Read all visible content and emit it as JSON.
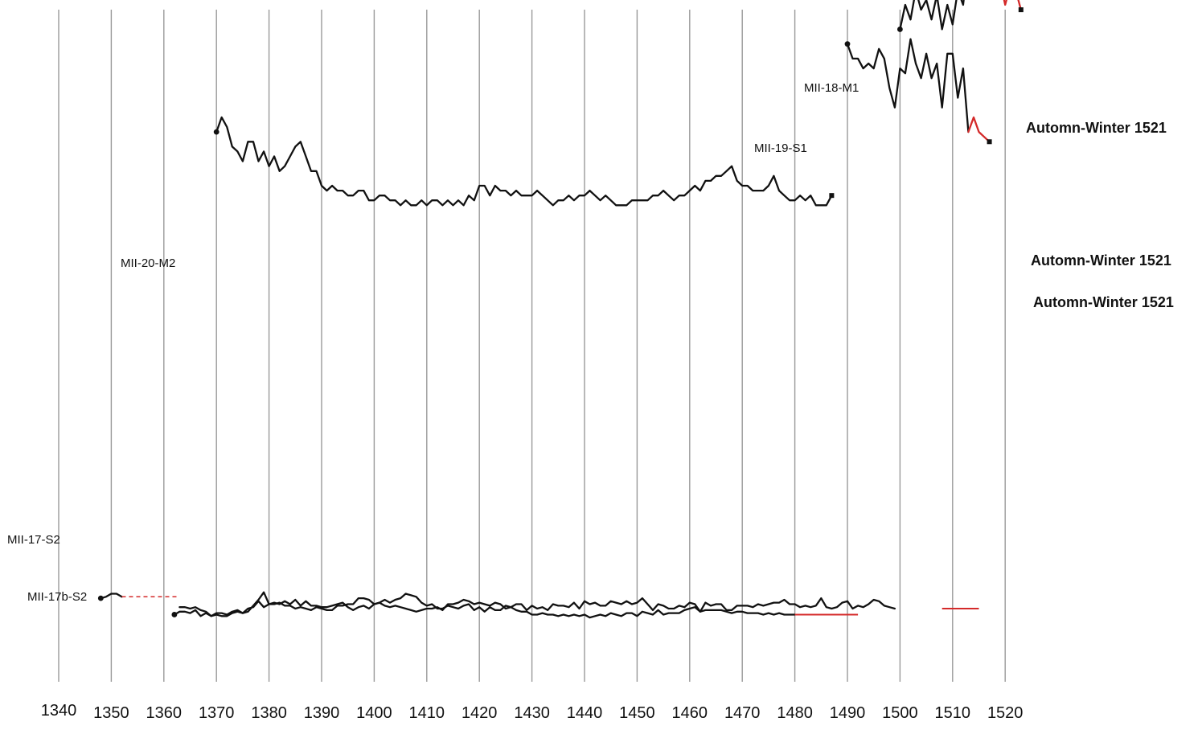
{
  "chart_data": {
    "type": "line",
    "title": "",
    "xlabel": "",
    "ylabel": "",
    "xlim": [
      1340,
      1520
    ],
    "ylim": [
      0,
      100
    ],
    "grid": "vertical lines at each decade",
    "legend": "none",
    "x_ticks": [
      1340,
      1350,
      1360,
      1370,
      1380,
      1390,
      1400,
      1410,
      1420,
      1430,
      1440,
      1450,
      1460,
      1470,
      1480,
      1490,
      1500,
      1510,
      1520
    ],
    "x_tick_labels": [
      "1340",
      "1350",
      "1360",
      "1370",
      "1380",
      "1390",
      "1400",
      "1410",
      "1420",
      "1430",
      "1440",
      "1450",
      "1460",
      "1470",
      "1480",
      "1490",
      "1500",
      "1510",
      "1520"
    ],
    "colors": {
      "series": "#111111",
      "highlight": "#d42a2a",
      "grid": "#9a9a9a"
    },
    "series": [
      {
        "name": "MII-18-M1",
        "start_year": 1500,
        "values": [
          82,
          87,
          84,
          90,
          86,
          88,
          84,
          89,
          82,
          87,
          83,
          90,
          87,
          96,
          93,
          95,
          91,
          98,
          94,
          92,
          87,
          91,
          90,
          86
        ],
        "highlight_from": 1515,
        "end_year": 1521
      },
      {
        "name": "MII-19-S1",
        "start_year": 1490,
        "values": [
          79,
          76,
          76,
          74,
          75,
          74,
          78,
          76,
          70,
          66,
          74,
          73,
          80,
          75,
          72,
          77,
          72,
          75,
          66,
          77,
          77,
          68,
          74,
          61,
          64,
          61,
          60,
          59
        ],
        "highlight_from": 1513,
        "end_year": 1521
      },
      {
        "name": "MII-20-M2",
        "start_year": 1370,
        "values": [
          61,
          64,
          62,
          58,
          57,
          55,
          59,
          59,
          55,
          57,
          54,
          56,
          53,
          54,
          56,
          58,
          59,
          56,
          53,
          53,
          50,
          49,
          50,
          49,
          49,
          48,
          48,
          49,
          49,
          47,
          47,
          48,
          48,
          47,
          47,
          46,
          47,
          46,
          46,
          47,
          46,
          47,
          47,
          46,
          47,
          46,
          47,
          46,
          48,
          47,
          50,
          50,
          48,
          50,
          49,
          49,
          48,
          49,
          48,
          48,
          48,
          49,
          48,
          47,
          46,
          47,
          47,
          48,
          47,
          48,
          48,
          49,
          48,
          47,
          48,
          47,
          46,
          46,
          46,
          47,
          47,
          47,
          47,
          48,
          48,
          49,
          48,
          47,
          48,
          48,
          49,
          50,
          49,
          51,
          51,
          52,
          52,
          53,
          54,
          51,
          50,
          50,
          49,
          49,
          49,
          50,
          52,
          49,
          48,
          47,
          47,
          48,
          47,
          48,
          46,
          46,
          46,
          48
        ],
        "highlight_from": 1511,
        "end_year": 1521
      },
      {
        "name": "MII-17-S2",
        "start_year": 1348,
        "values": [
          14,
          15,
          17,
          17,
          15,
          3,
          9,
          8,
          6,
          5,
          8,
          7,
          5,
          5,
          6,
          8,
          8,
          7,
          8,
          6,
          5,
          2,
          4,
          4,
          3,
          5,
          6,
          4,
          7,
          8,
          12,
          8,
          10,
          10,
          11,
          9,
          9,
          7,
          8,
          7,
          6,
          8,
          7,
          6,
          6,
          9,
          9,
          10,
          10,
          14,
          14,
          13,
          10,
          11,
          9,
          8,
          9,
          8,
          7,
          6,
          5,
          6,
          7,
          7,
          8,
          6,
          10,
          10,
          11,
          13,
          12,
          10,
          11,
          10,
          9,
          11,
          10,
          7,
          8,
          6,
          5,
          5,
          3,
          3,
          4,
          3,
          3,
          2,
          3,
          2,
          3,
          2,
          3,
          1,
          2,
          3,
          2,
          4,
          3,
          2,
          4,
          4,
          2,
          5,
          4,
          3,
          6,
          3,
          4,
          4,
          4,
          6,
          7,
          8,
          5,
          6,
          6,
          6,
          6,
          5,
          4,
          5,
          5,
          4,
          4,
          4,
          3,
          4,
          3,
          4,
          3,
          3,
          3,
          1,
          2,
          3,
          4,
          3,
          3,
          2,
          2,
          2,
          2,
          1,
          1
        ],
        "dashed_from": 1352,
        "dashed_to": 1363,
        "end_year": 1492,
        "flat_from": 1480
      },
      {
        "name": "MII-17b-S2",
        "start_year": 1362,
        "values": [
          3,
          5,
          5,
          4,
          6,
          2,
          4,
          2,
          3,
          2,
          2,
          4,
          5,
          4,
          5,
          9,
          13,
          18,
          10,
          11,
          10,
          12,
          10,
          13,
          9,
          12,
          9,
          9,
          8,
          8,
          9,
          10,
          11,
          8,
          6,
          8,
          9,
          7,
          10,
          11,
          13,
          11,
          13,
          14,
          17,
          16,
          15,
          11,
          9,
          10,
          7,
          7,
          9,
          8,
          7,
          9,
          10,
          6,
          8,
          5,
          8,
          6,
          6,
          9,
          8,
          10,
          10,
          6,
          9,
          7,
          8,
          6,
          10,
          9,
          9,
          8,
          11,
          7,
          12,
          10,
          11,
          9,
          9,
          12,
          11,
          10,
          12,
          10,
          11,
          14,
          10,
          6,
          10,
          9,
          7,
          7,
          9,
          8,
          11,
          10,
          5,
          11,
          9,
          10,
          10,
          6,
          6,
          9,
          9,
          9,
          8,
          10,
          9,
          10,
          11,
          11,
          13,
          10,
          10,
          8,
          9,
          8,
          9,
          14,
          8,
          7,
          8,
          11,
          12,
          7,
          9,
          8,
          10,
          13,
          12,
          9,
          8,
          7
        ],
        "end_year": 1515,
        "flat_from": 1508
      }
    ],
    "annotations": [
      {
        "series": "MII-18-M1",
        "text": "Automn-Winter 1521"
      },
      {
        "series": "MII-19-S1",
        "text": "Automn-Winter 1521"
      },
      {
        "series": "MII-20-M2",
        "text": "Automn-Winter 1521"
      }
    ]
  }
}
